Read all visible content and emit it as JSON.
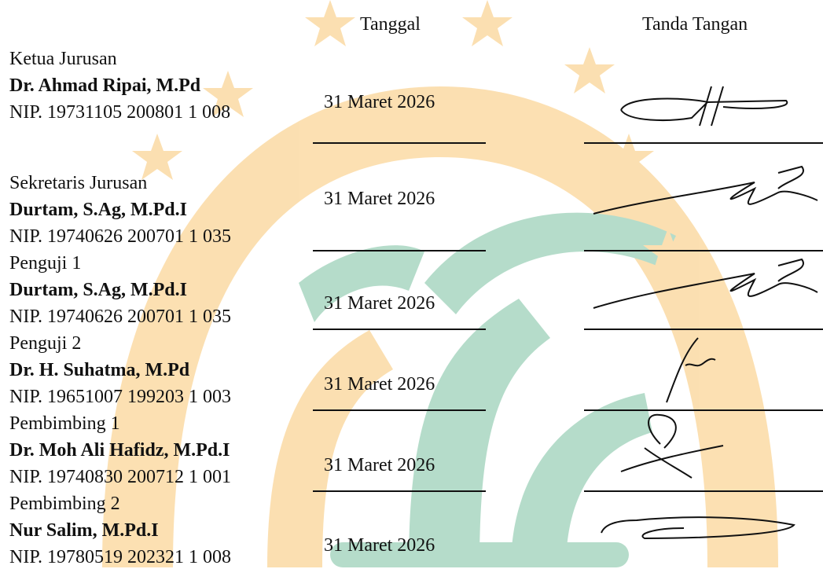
{
  "header": {
    "date": "Tanggal",
    "signature": "Tanda Tangan"
  },
  "rows": [
    {
      "role": "Ketua Jurusan",
      "name": "Dr. Ahmad Ripai, M.Pd",
      "nip": "NIP. 19731105 200801 1 008",
      "date": "31 Maret 2026"
    },
    {
      "role": "Sekretaris Jurusan",
      "name": "Durtam, S.Ag, M.Pd.I",
      "nip": "NIP. 19740626 200701 1 035",
      "date": "31 Maret 2026"
    },
    {
      "role": "Penguji 1",
      "name": "Durtam, S.Ag, M.Pd.I",
      "nip": "NIP. 19740626 200701 1 035",
      "date": "31 Maret 2026"
    },
    {
      "role": "Penguji 2",
      "name": "Dr. H. Suhatma, M.Pd",
      "nip": "NIP. 19651007 199203 1 003",
      "date": "31 Maret 2026"
    },
    {
      "role": "Pembimbing 1",
      "name": "Dr. Moh Ali Hafidz, M.Pd.I",
      "nip": "NIP. 19740830 200712 1 001",
      "date": "31 Maret 2026"
    },
    {
      "role": "Pembimbing 2",
      "name": "Nur Salim, M.Pd.I",
      "nip": "NIP. 19780519 202321 1 008",
      "date": "31 Maret 2026"
    }
  ]
}
